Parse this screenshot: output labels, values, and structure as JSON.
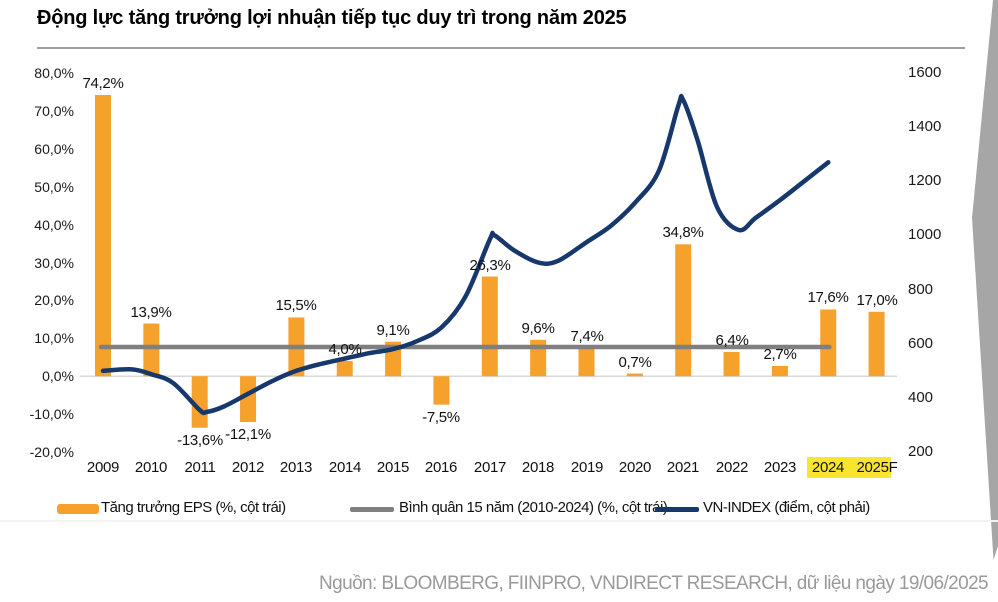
{
  "header": {
    "title": "Động lực tăng trưởng lợi nhuận tiếp tục duy trì trong năm 2025"
  },
  "source_note": "Nguồn: BLOOMBERG, FIINPRO, VNDIRECT RESEARCH, dữ liệu ngày 19/06/2025",
  "colors": {
    "bar_orange": "#F5A12C",
    "avg_gray": "#7F7F7F",
    "vnindex_navy": "#16386D",
    "zero_gridline": "#D9D9D9",
    "highlight_yellow": "#F8E62D",
    "decor_gray": "#A6A6A6",
    "source_gray": "#9A9A9A"
  },
  "chart_data": {
    "type": "combo",
    "title": "Động lực tăng trưởng lợi nhuận tiếp tục duy trì trong năm 2025",
    "categories": [
      "2009",
      "2010",
      "2011",
      "2012",
      "2013",
      "2014",
      "2015",
      "2016",
      "2017",
      "2018",
      "2019",
      "2020",
      "2021",
      "2022",
      "2023",
      "2024",
      "2025F"
    ],
    "series": [
      {
        "name": "Tăng trưởng EPS (%, cột trái)",
        "type": "bar",
        "axis": "left",
        "color": "#F5A12C",
        "values": [
          74.2,
          13.9,
          -13.6,
          -12.1,
          15.5,
          4.0,
          9.1,
          -7.5,
          26.3,
          9.6,
          7.4,
          0.7,
          34.8,
          6.4,
          2.7,
          17.6,
          17.0
        ],
        "value_labels": [
          "74,2%",
          "13,9%",
          "-13,6%",
          "-12,1%",
          "15,5%",
          "4,0%",
          "9,1%",
          "-7,5%",
          "26,3%",
          "9,6%",
          "7,4%",
          "0,7%",
          "34,8%",
          "6,4%",
          "2,7%",
          "17,6%",
          "17,0%"
        ]
      },
      {
        "name": "Bình quân 15 năm (2010-2024) (%, cột trái)",
        "type": "line",
        "axis": "left",
        "color": "#7F7F7F",
        "value": 7.7,
        "x_span": [
          2009,
          2024
        ]
      },
      {
        "name": "VN-INDEX (điểm, cột phải)",
        "type": "line",
        "axis": "right",
        "color": "#16386D",
        "points": [
          [
            2009,
            500
          ],
          [
            2009.6,
            505
          ],
          [
            2010,
            487
          ],
          [
            2010.45,
            455
          ],
          [
            2011,
            355
          ],
          [
            2011.15,
            348
          ],
          [
            2011.5,
            368
          ],
          [
            2012,
            415
          ],
          [
            2012.5,
            462
          ],
          [
            2013,
            500
          ],
          [
            2013.5,
            525
          ],
          [
            2014,
            545
          ],
          [
            2014.5,
            565
          ],
          [
            2015,
            580
          ],
          [
            2015.5,
            610
          ],
          [
            2016,
            660
          ],
          [
            2016.5,
            775
          ],
          [
            2017,
            985
          ],
          [
            2017.1,
            1000
          ],
          [
            2017.5,
            945
          ],
          [
            2018,
            900
          ],
          [
            2018.4,
            905
          ],
          [
            2019,
            975
          ],
          [
            2019.5,
            1035
          ],
          [
            2020,
            1120
          ],
          [
            2020.5,
            1240
          ],
          [
            2020.9,
            1480
          ],
          [
            2021,
            1500
          ],
          [
            2021.3,
            1350
          ],
          [
            2021.7,
            1105
          ],
          [
            2022.15,
            1020
          ],
          [
            2022.5,
            1065
          ],
          [
            2023,
            1130
          ],
          [
            2023.5,
            1200
          ],
          [
            2024,
            1270
          ]
        ]
      }
    ],
    "left_axis": {
      "ticks": [
        "80,0%",
        "70,0%",
        "60,0%",
        "50,0%",
        "40,0%",
        "30,0%",
        "20,0%",
        "10,0%",
        "0,0%",
        "-10,0%",
        "-20,0%"
      ],
      "tick_values": [
        80,
        70,
        60,
        50,
        40,
        30,
        20,
        10,
        0,
        -10,
        -20
      ],
      "min": -20,
      "max": 80
    },
    "right_axis": {
      "ticks": [
        "1600",
        "1400",
        "1200",
        "1000",
        "800",
        "600",
        "400",
        "200"
      ],
      "tick_values": [
        1600,
        1400,
        1200,
        1000,
        800,
        600,
        400,
        200
      ],
      "min": 200,
      "max": 1600
    },
    "forecast_highlight": {
      "covered_labels": "2024 2025",
      "color": "#F8E62D"
    },
    "legend_position": "bottom",
    "grid": "zero-line-only"
  }
}
